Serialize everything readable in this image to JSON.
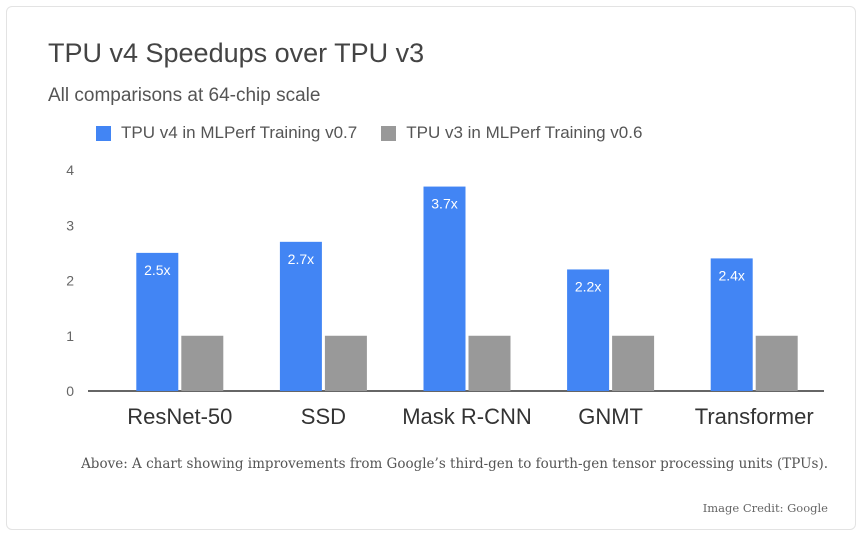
{
  "caption": "Above: A chart showing improvements from Google’s third-gen to fourth-gen tensor processing units (TPUs).",
  "credit": "Image Credit: Google",
  "chart_data": {
    "type": "bar",
    "title": "TPU v4 Speedups over TPU v3",
    "subtitle": "All comparisons at 64-chip scale",
    "categories": [
      "ResNet-50",
      "SSD",
      "Mask R-CNN",
      "GNMT",
      "Transformer"
    ],
    "series": [
      {
        "name": "TPU v4 in MLPerf Training v0.7",
        "color": "#4285f4",
        "values": [
          2.5,
          2.7,
          3.7,
          2.2,
          2.4
        ],
        "labels": [
          "2.5x",
          "2.7x",
          "3.7x",
          "2.2x",
          "2.4x"
        ]
      },
      {
        "name": "TPU v3 in MLPerf Training v0.6",
        "color": "#999999",
        "values": [
          1,
          1,
          1,
          1,
          1
        ]
      }
    ],
    "yticks": [
      "0",
      "1",
      "2",
      "3",
      "4"
    ],
    "ylim": [
      0,
      4
    ],
    "legend_position": "top",
    "grid": false
  }
}
